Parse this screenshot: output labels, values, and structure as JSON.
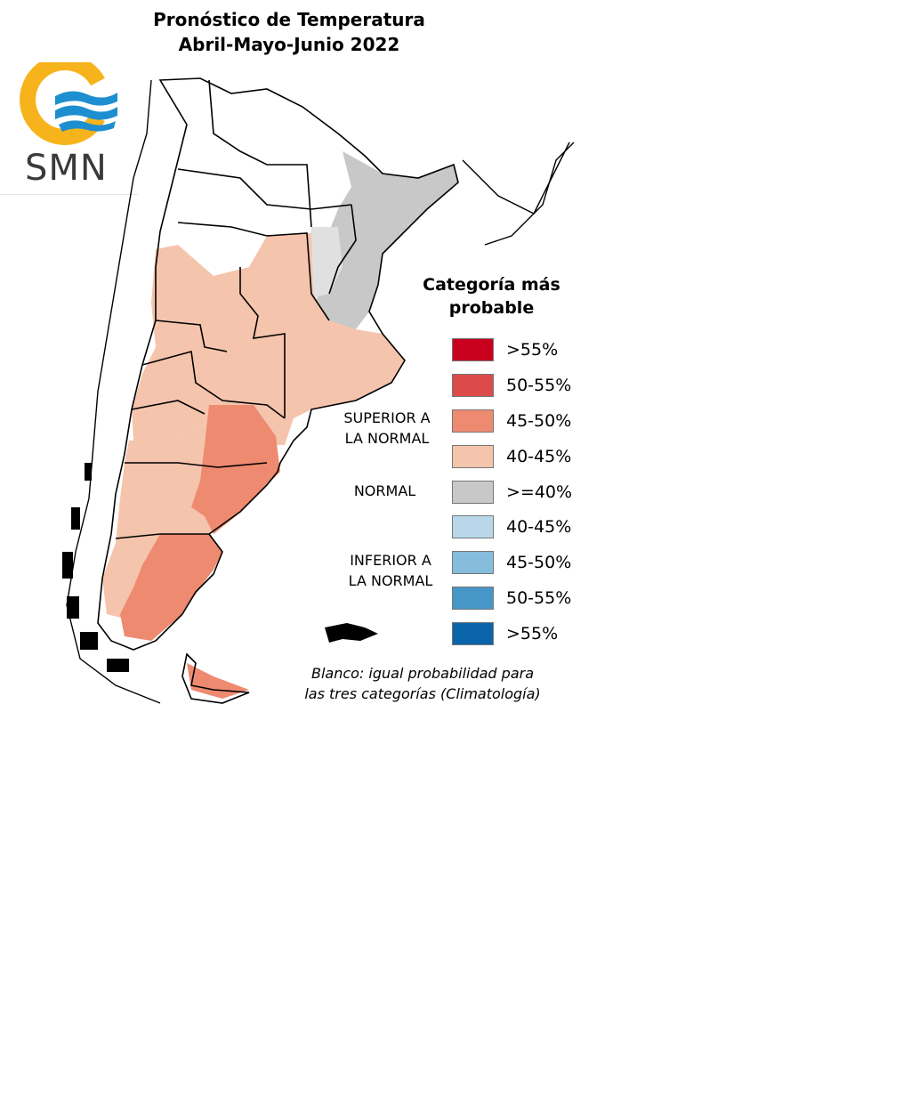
{
  "header": {
    "title_line1": "Pronóstico de Temperatura",
    "title_line2": "Abril-Mayo-Junio 2022"
  },
  "logo": {
    "text": "SMN",
    "icon": "smn-sun-waves-logo",
    "colors": {
      "sun": "#f7b31b",
      "waves": "#1d8fd0",
      "text": "#3a3a3a"
    }
  },
  "legend": {
    "title": "Categoría más probable",
    "items": [
      {
        "label": ">55%",
        "color": "#c8001e"
      },
      {
        "label": "50-55%",
        "color": "#dc4a4a"
      },
      {
        "label": "45-50%",
        "color": "#ee8a70"
      },
      {
        "label": "40-45%",
        "color": "#f5c4ac"
      },
      {
        "label": ">=40%",
        "color": "#c8c8c8"
      },
      {
        "label": "40-45%",
        "color": "#b8d8ea"
      },
      {
        "label": "45-50%",
        "color": "#86bcdc"
      },
      {
        "label": "50-55%",
        "color": "#4696c8"
      },
      {
        "label": ">55%",
        "color": "#0a64aa"
      }
    ],
    "categories": {
      "superior": "SUPERIOR A\nLA NORMAL",
      "normal": "NORMAL",
      "inferior": "INFERIOR A\nLA NORMAL"
    }
  },
  "note": "Blanco: igual probabilidad para\nlas tres categorías (Climatología)"
}
